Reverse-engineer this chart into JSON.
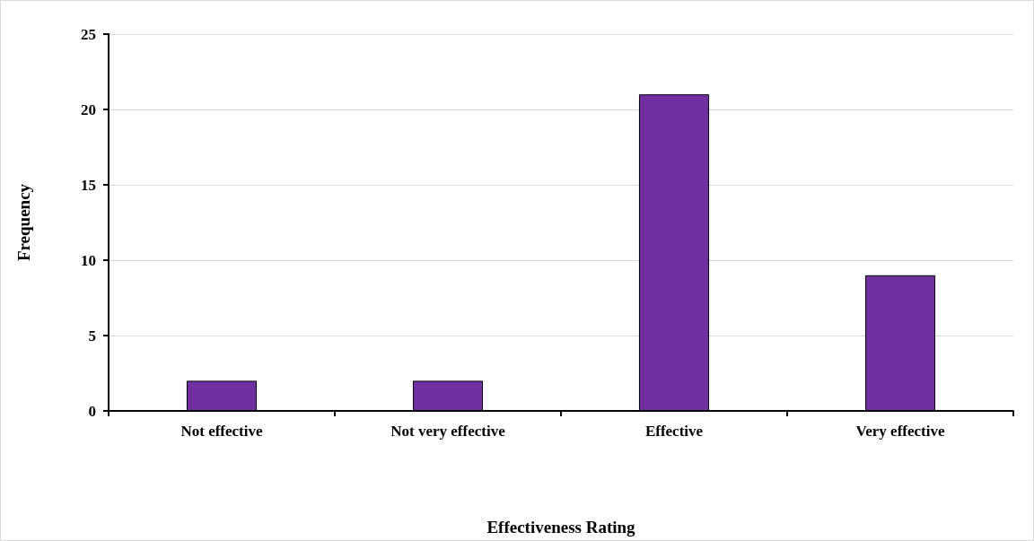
{
  "chart_data": {
    "type": "bar",
    "xlabel": "Effectiveness Rating",
    "ylabel": "Frequency",
    "categories": [
      "Not effective",
      "Not very effective",
      "Effective",
      "Very effective"
    ],
    "values": [
      2,
      2,
      21,
      9
    ],
    "color": "#7030a0",
    "ylim": [
      0,
      25
    ],
    "yticks": [
      0,
      5,
      10,
      15,
      20,
      25
    ],
    "grid": "y"
  }
}
